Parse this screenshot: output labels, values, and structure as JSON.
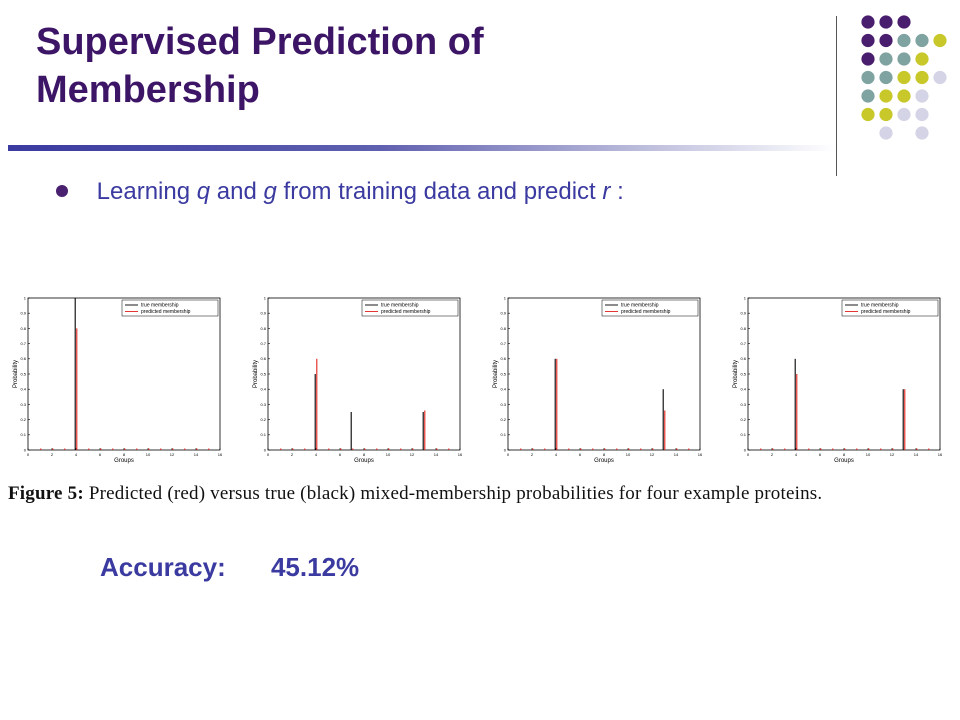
{
  "slide": {
    "title_line1": "Supervised Prediction of",
    "title_line2": "Membership",
    "bullet_prefix": "Learning",
    "bullet_var1": "q",
    "bullet_and": "and",
    "bullet_var2": "g",
    "bullet_middle": "from training data and predict",
    "bullet_var3": "r",
    "bullet_suffix": ":",
    "caption_label": "Figure 5:",
    "caption_text": "Predicted (red) versus true (black) mixed-membership probabilities for four example proteins.",
    "accuracy_label": "Accuracy:",
    "accuracy_value": "45.12%"
  },
  "colors": {
    "title": "#3d1566",
    "accent_blue": "#3a3aa0",
    "true_series": "#000000",
    "predicted_series": "#e0201a",
    "dot_purple": "#4a1e6e",
    "dot_teal": "#7fa3a0",
    "dot_olive": "#c8c82a",
    "dot_lavender": "#d4d4e6"
  },
  "chart_data": [
    {
      "type": "bar",
      "xlabel": "Groups",
      "ylabel": "Probability",
      "xlim": [
        0,
        16
      ],
      "ylim": [
        0,
        1
      ],
      "xticks": [
        "0",
        "2",
        "4",
        "6",
        "8",
        "10",
        "12",
        "14",
        "16"
      ],
      "yticks": [
        "0",
        "0.1",
        "0.2",
        "0.3",
        "0.4",
        "0.5",
        "0.6",
        "0.7",
        "0.8",
        "0.9",
        "1"
      ],
      "legend": "top-right",
      "series": [
        {
          "name": "true membership",
          "x": [
            4
          ],
          "values": [
            1.0
          ]
        },
        {
          "name": "predicted membership",
          "x": [
            1,
            2,
            3,
            4,
            5,
            6,
            7,
            8,
            9,
            10,
            11,
            12,
            13,
            14,
            15
          ],
          "values": [
            0.01,
            0.01,
            0.01,
            0.8,
            0.01,
            0.01,
            0.01,
            0.01,
            0.01,
            0.01,
            0.01,
            0.01,
            0.01,
            0.01,
            0.01
          ]
        }
      ]
    },
    {
      "type": "bar",
      "xlabel": "Groups",
      "ylabel": "Probability",
      "xlim": [
        0,
        16
      ],
      "ylim": [
        0,
        1
      ],
      "xticks": [
        "0",
        "2",
        "4",
        "6",
        "8",
        "10",
        "12",
        "14",
        "16"
      ],
      "yticks": [
        "0",
        "0.1",
        "0.2",
        "0.3",
        "0.4",
        "0.5",
        "0.6",
        "0.7",
        "0.8",
        "0.9",
        "1"
      ],
      "legend": "top-right",
      "series": [
        {
          "name": "true membership",
          "x": [
            4,
            7,
            13
          ],
          "values": [
            0.5,
            0.25,
            0.25
          ]
        },
        {
          "name": "predicted membership",
          "x": [
            1,
            2,
            3,
            4,
            5,
            6,
            7,
            8,
            9,
            10,
            11,
            12,
            13,
            14,
            15
          ],
          "values": [
            0.01,
            0.01,
            0.01,
            0.6,
            0.01,
            0.01,
            0.01,
            0.01,
            0.01,
            0.01,
            0.01,
            0.01,
            0.26,
            0.01,
            0.01
          ]
        }
      ]
    },
    {
      "type": "bar",
      "xlabel": "Groups",
      "ylabel": "Probability",
      "xlim": [
        0,
        16
      ],
      "ylim": [
        0,
        1
      ],
      "xticks": [
        "0",
        "2",
        "4",
        "6",
        "8",
        "10",
        "12",
        "14",
        "16"
      ],
      "yticks": [
        "0",
        "0.1",
        "0.2",
        "0.3",
        "0.4",
        "0.5",
        "0.6",
        "0.7",
        "0.8",
        "0.9",
        "1"
      ],
      "legend": "top-right",
      "series": [
        {
          "name": "true membership",
          "x": [
            4,
            13
          ],
          "values": [
            0.6,
            0.4
          ]
        },
        {
          "name": "predicted membership",
          "x": [
            1,
            2,
            3,
            4,
            5,
            6,
            7,
            8,
            9,
            10,
            11,
            12,
            13,
            14,
            15
          ],
          "values": [
            0.01,
            0.01,
            0.01,
            0.6,
            0.01,
            0.01,
            0.01,
            0.01,
            0.01,
            0.01,
            0.01,
            0.01,
            0.26,
            0.01,
            0.01
          ]
        }
      ]
    },
    {
      "type": "bar",
      "xlabel": "Groups",
      "ylabel": "Probability",
      "xlim": [
        0,
        16
      ],
      "ylim": [
        0,
        1
      ],
      "xticks": [
        "0",
        "2",
        "4",
        "6",
        "8",
        "10",
        "12",
        "14",
        "16"
      ],
      "yticks": [
        "0",
        "0.1",
        "0.2",
        "0.3",
        "0.4",
        "0.5",
        "0.6",
        "0.7",
        "0.8",
        "0.9",
        "1"
      ],
      "legend": "top-right",
      "series": [
        {
          "name": "true membership",
          "x": [
            4,
            13
          ],
          "values": [
            0.6,
            0.4
          ]
        },
        {
          "name": "predicted membership",
          "x": [
            1,
            2,
            3,
            4,
            5,
            6,
            7,
            8,
            9,
            10,
            11,
            12,
            13,
            14,
            15
          ],
          "values": [
            0.01,
            0.01,
            0.01,
            0.5,
            0.01,
            0.01,
            0.01,
            0.01,
            0.01,
            0.01,
            0.01,
            0.01,
            0.4,
            0.01,
            0.01
          ]
        }
      ]
    }
  ]
}
